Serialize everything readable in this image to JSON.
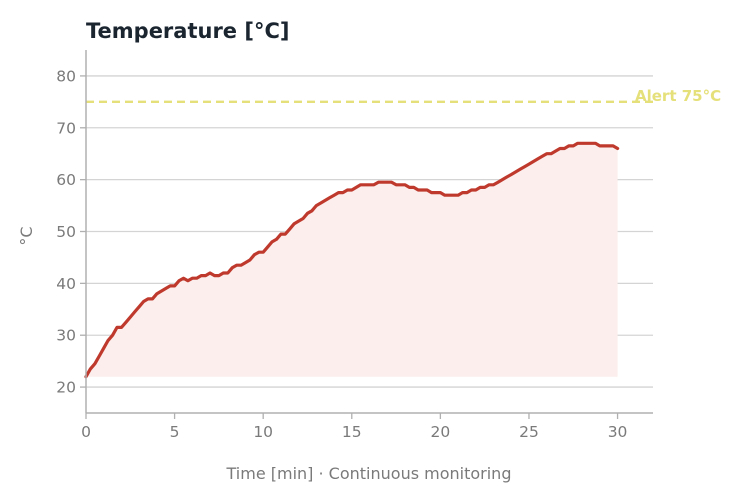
{
  "chart_data": {
    "type": "area",
    "title": "Temperature  [°C]",
    "xlabel": "Time [min]  ·  Continuous monitoring",
    "ylabel": "°C",
    "xlim": [
      0,
      32
    ],
    "ylim": [
      15,
      85
    ],
    "xticks": [
      0,
      5,
      10,
      15,
      20,
      25,
      30
    ],
    "yticks": [
      20,
      30,
      40,
      50,
      60,
      70,
      80
    ],
    "grid": "horizontal",
    "series": [
      {
        "x": [
          0,
          0.25,
          0.5,
          0.75,
          1,
          1.25,
          1.5,
          1.75,
          2,
          2.25,
          2.5,
          2.75,
          3,
          3.25,
          3.5,
          3.75,
          4,
          4.25,
          4.5,
          4.75,
          5,
          5.25,
          5.5,
          5.75,
          6,
          6.25,
          6.5,
          6.75,
          7,
          7.25,
          7.5,
          7.75,
          8,
          8.25,
          8.5,
          8.75,
          9,
          9.25,
          9.5,
          9.75,
          10,
          10.25,
          10.5,
          10.75,
          11,
          11.25,
          11.5,
          11.75,
          12,
          12.25,
          12.5,
          12.75,
          13,
          13.25,
          13.5,
          13.75,
          14,
          14.25,
          14.5,
          14.75,
          15,
          15.25,
          15.5,
          15.75,
          16,
          16.25,
          16.5,
          16.75,
          17,
          17.25,
          17.5,
          17.75,
          18,
          18.25,
          18.5,
          18.75,
          19,
          19.25,
          19.5,
          19.75,
          20,
          20.25,
          20.5,
          20.75,
          21,
          21.25,
          21.5,
          21.75,
          22,
          22.25,
          22.5,
          22.75,
          23,
          23.25,
          23.5,
          23.75,
          24,
          24.25,
          24.5,
          24.75,
          25,
          25.25,
          25.5,
          25.75,
          26,
          26.25,
          26.5,
          26.75,
          27,
          27.25,
          27.5,
          27.75,
          28,
          28.25,
          28.5,
          28.75,
          29,
          29.25,
          29.5,
          29.75,
          30
        ],
        "y": [
          22,
          23.5,
          24.5,
          26,
          27.5,
          29,
          30,
          31.5,
          31.5,
          32.5,
          33.5,
          34.5,
          35.5,
          36.5,
          37,
          37,
          38,
          38.5,
          39,
          39.5,
          39.5,
          40.5,
          41,
          40.5,
          41,
          41,
          41.5,
          41.5,
          42,
          41.5,
          41.5,
          42,
          42,
          43,
          43.5,
          43.5,
          44,
          44.5,
          45.5,
          46,
          46,
          47,
          48,
          48.5,
          49.5,
          49.5,
          50.5,
          51.5,
          52,
          52.5,
          53.5,
          54,
          55,
          55.5,
          56,
          56.5,
          57,
          57.5,
          57.5,
          58,
          58,
          58.5,
          59,
          59,
          59,
          59,
          59.5,
          59.5,
          59.5,
          59.5,
          59,
          59,
          59,
          58.5,
          58.5,
          58,
          58,
          58,
          57.5,
          57.5,
          57.5,
          57,
          57,
          57,
          57,
          57.5,
          57.5,
          58,
          58,
          58.5,
          58.5,
          59,
          59,
          59.5,
          60,
          60.5,
          61,
          61.5,
          62,
          62.5,
          63,
          63.5,
          64,
          64.5,
          65,
          65,
          65.5,
          66,
          66,
          66.5,
          66.5,
          67,
          67,
          67,
          67,
          67,
          66.5,
          66.5,
          66.5,
          66.5,
          66
        ]
      }
    ],
    "reference_line": {
      "y": 75,
      "label": "Alert 75°C",
      "style": "dashed"
    },
    "colors": {
      "line": "#bf3a2d",
      "fill": "#fbeeed",
      "grid": "#d4d4d4",
      "axis": "#b0b0b0",
      "alert": "#e5e07a"
    }
  }
}
